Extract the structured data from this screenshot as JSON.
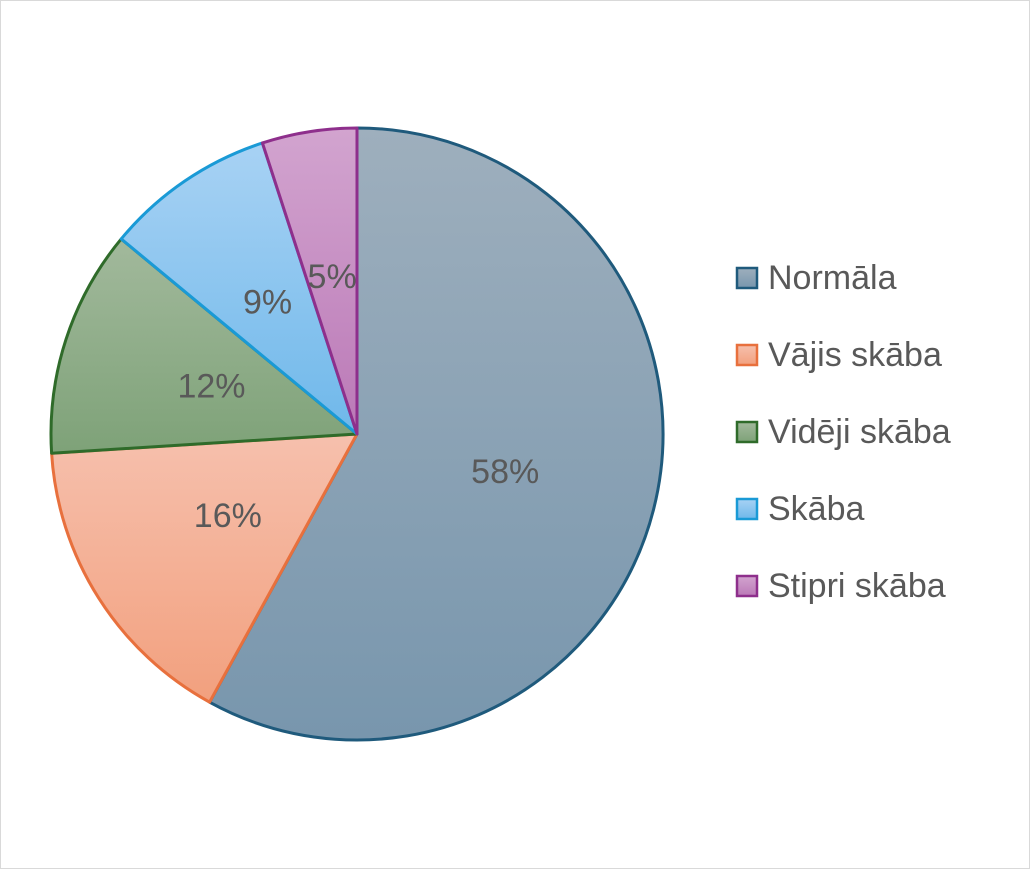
{
  "chart_data": {
    "type": "pie",
    "categories": [
      "Normāla",
      "Vājis skāba",
      "Vidēji skāba",
      "Skāba",
      "Stipri skāba"
    ],
    "values": [
      58,
      16,
      12,
      9,
      5
    ],
    "data_labels": [
      "58%",
      "16%",
      "12%",
      "9%",
      "5%"
    ],
    "colors": {
      "fill_top": [
        "#9eafbd",
        "#f6c0ad",
        "#a2b99c",
        "#a8d2f4",
        "#d2a4cf"
      ],
      "fill_bottom": [
        "#7896ad",
        "#f2a07e",
        "#7ea278",
        "#6fb8ea",
        "#bb79b7"
      ],
      "stroke": [
        "#1f5a7c",
        "#e8703d",
        "#2f6b2a",
        "#1a9ad6",
        "#8e2f8c"
      ]
    },
    "legend_position": "right",
    "start_angle_deg": 0,
    "direction": "clockwise"
  }
}
